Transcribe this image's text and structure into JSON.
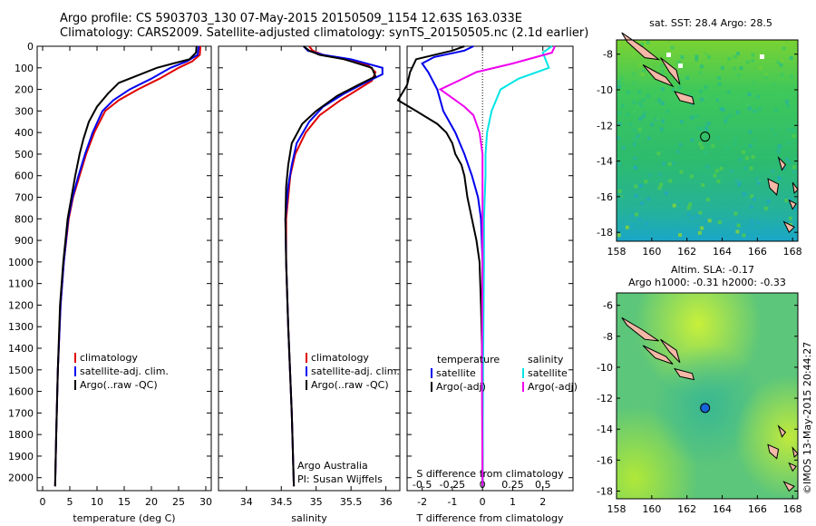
{
  "header": {
    "line1": "Argo profile: CS 5903703_130 07-May-2015 20150509_1154 12.63S 163.033E",
    "line2": "Climatology: CARS2009. Satellite-adjusted climatology: synTS_20150505.nc (2.1d earlier)"
  },
  "side_text": "©IMOS 13-May-2015 20:44:27",
  "colors": {
    "climatology": "#e00000",
    "satellite": "#0000ee",
    "argo": "#000000",
    "sal_satellite": "#00e5e5",
    "sal_argo": "#ee00ee"
  },
  "chart_data": [
    {
      "type": "line",
      "xlabel": "temperature (deg C)",
      "xlim": [
        -1,
        31
      ],
      "ylim": [
        2060,
        0
      ],
      "xticks": [
        0,
        5,
        10,
        15,
        20,
        25,
        30
      ],
      "yticks": [
        0,
        100,
        200,
        300,
        400,
        500,
        600,
        700,
        800,
        900,
        1000,
        1100,
        1200,
        1300,
        1400,
        1500,
        1600,
        1700,
        1800,
        1900,
        2000
      ],
      "legend": [
        "climatology",
        "satellite-adj. clim.",
        "Argo(..raw -QC)"
      ],
      "series": [
        {
          "name": "climatology",
          "points": [
            [
              29,
              0
            ],
            [
              28.9,
              40
            ],
            [
              27.5,
              70
            ],
            [
              25,
              100
            ],
            [
              21.5,
              150
            ],
            [
              17.5,
              200
            ],
            [
              14,
              250
            ],
            [
              11.5,
              300
            ],
            [
              9.5,
              400
            ],
            [
              8,
              500
            ],
            [
              6.8,
              600
            ],
            [
              5.6,
              700
            ],
            [
              4.8,
              800
            ],
            [
              3.9,
              1000
            ],
            [
              3.3,
              1200
            ],
            [
              2.8,
              1500
            ],
            [
              2.5,
              1800
            ],
            [
              2.3,
              2040
            ]
          ]
        },
        {
          "name": "satellite-adj. clim.",
          "points": [
            [
              28.7,
              0
            ],
            [
              28.5,
              40
            ],
            [
              26.5,
              70
            ],
            [
              23.5,
              100
            ],
            [
              20,
              150
            ],
            [
              16,
              200
            ],
            [
              13,
              250
            ],
            [
              11,
              300
            ],
            [
              9.2,
              400
            ],
            [
              7.8,
              500
            ],
            [
              6.6,
              600
            ],
            [
              5.5,
              700
            ],
            [
              4.7,
              800
            ],
            [
              3.9,
              1000
            ],
            [
              3.3,
              1200
            ],
            [
              2.8,
              1500
            ],
            [
              2.5,
              1800
            ],
            [
              2.3,
              2040
            ]
          ]
        },
        {
          "name": "Argo(..raw -QC)",
          "points": [
            [
              28.3,
              0
            ],
            [
              28.2,
              30
            ],
            [
              27,
              60
            ],
            [
              24,
              80
            ],
            [
              21,
              100
            ],
            [
              18,
              130
            ],
            [
              14,
              170
            ],
            [
              12,
              220
            ],
            [
              10,
              280
            ],
            [
              8.5,
              350
            ],
            [
              7.5,
              430
            ],
            [
              6.8,
              500
            ],
            [
              6,
              600
            ],
            [
              5.3,
              700
            ],
            [
              4.6,
              800
            ],
            [
              3.8,
              1000
            ],
            [
              3.2,
              1200
            ],
            [
              2.8,
              1500
            ],
            [
              2.5,
              1800
            ],
            [
              2.3,
              2040
            ]
          ]
        }
      ]
    },
    {
      "type": "line",
      "xlabel": "salinity",
      "xlim": [
        33.6,
        36.2
      ],
      "ylim": [
        2060,
        0
      ],
      "xticks": [
        34,
        34.5,
        35,
        35.5,
        36
      ],
      "legend": [
        "climatology",
        "satellite-adj. clim.",
        "Argo(..raw -QC)"
      ],
      "annotation": [
        "Argo Australia",
        "PI: Susan Wijffels"
      ],
      "series": [
        {
          "name": "climatology",
          "points": [
            [
              34.9,
              0
            ],
            [
              34.95,
              20
            ],
            [
              35.1,
              40
            ],
            [
              35.4,
              60
            ],
            [
              35.75,
              90
            ],
            [
              35.85,
              120
            ],
            [
              35.8,
              160
            ],
            [
              35.6,
              200
            ],
            [
              35.35,
              250
            ],
            [
              35.05,
              320
            ],
            [
              34.85,
              400
            ],
            [
              34.7,
              500
            ],
            [
              34.63,
              600
            ],
            [
              34.57,
              800
            ],
            [
              34.57,
              1000
            ],
            [
              34.6,
              1300
            ],
            [
              34.65,
              1700
            ],
            [
              34.68,
              2040
            ]
          ]
        },
        {
          "name": "satellite-adj. clim.",
          "points": [
            [
              34.82,
              0
            ],
            [
              34.88,
              20
            ],
            [
              35.1,
              40
            ],
            [
              35.5,
              60
            ],
            [
              35.95,
              100
            ],
            [
              35.95,
              130
            ],
            [
              35.7,
              170
            ],
            [
              35.4,
              220
            ],
            [
              35.1,
              280
            ],
            [
              34.9,
              350
            ],
            [
              34.72,
              450
            ],
            [
              34.65,
              550
            ],
            [
              34.6,
              650
            ],
            [
              34.56,
              800
            ],
            [
              34.57,
              1000
            ],
            [
              34.6,
              1300
            ],
            [
              34.65,
              1700
            ],
            [
              34.68,
              2040
            ]
          ]
        },
        {
          "name": "Argo(..raw -QC)",
          "points": [
            [
              34.82,
              0
            ],
            [
              34.9,
              20
            ],
            [
              35.05,
              40
            ],
            [
              35.4,
              60
            ],
            [
              35.8,
              100
            ],
            [
              35.85,
              140
            ],
            [
              35.6,
              180
            ],
            [
              35.3,
              230
            ],
            [
              35.0,
              300
            ],
            [
              34.8,
              360
            ],
            [
              34.65,
              450
            ],
            [
              34.6,
              550
            ],
            [
              34.57,
              650
            ],
            [
              34.56,
              800
            ],
            [
              34.57,
              1000
            ],
            [
              34.6,
              1300
            ],
            [
              34.65,
              1700
            ],
            [
              34.68,
              2040
            ]
          ]
        }
      ]
    },
    {
      "type": "line",
      "xlabel": "T difference from climatology",
      "xlabel_top": "S difference from climatology",
      "xlim": [
        -2.5,
        3
      ],
      "ylim": [
        2060,
        0
      ],
      "xticks": [
        -2,
        -1,
        0,
        1,
        2
      ],
      "xticks_top": [
        "-0.5",
        "-0.25",
        "0",
        "0.25",
        "0.5"
      ],
      "legend_titles": [
        "temperature",
        "salinity"
      ],
      "legend": [
        "satellite",
        "Argo(-adj)",
        "satellite",
        "Argo(-adj)"
      ],
      "series": [
        {
          "name": "satellite",
          "group": "temperature",
          "points": [
            [
              -0.3,
              0
            ],
            [
              -0.6,
              20
            ],
            [
              -1.6,
              50
            ],
            [
              -2.0,
              80
            ],
            [
              -1.8,
              120
            ],
            [
              -1.5,
              200
            ],
            [
              -1.3,
              300
            ],
            [
              -0.9,
              400
            ],
            [
              -0.6,
              500
            ],
            [
              -0.35,
              600
            ],
            [
              -0.15,
              700
            ],
            [
              -0.05,
              800
            ],
            [
              0,
              1000
            ],
            [
              0,
              2040
            ]
          ]
        },
        {
          "name": "Argo(-adj)",
          "group": "temperature",
          "points": [
            [
              -0.6,
              0
            ],
            [
              -1.0,
              20
            ],
            [
              -2.2,
              60
            ],
            [
              -2.4,
              120
            ],
            [
              -2.5,
              180
            ],
            [
              -2.8,
              250
            ],
            [
              -2.2,
              300
            ],
            [
              -1.5,
              360
            ],
            [
              -1.2,
              400
            ],
            [
              -1.0,
              450
            ],
            [
              -0.9,
              500
            ],
            [
              -0.7,
              550
            ],
            [
              -0.6,
              600
            ],
            [
              -0.5,
              700
            ],
            [
              -0.35,
              800
            ],
            [
              -0.2,
              900
            ],
            [
              -0.1,
              1000
            ],
            [
              -0.05,
              1200
            ],
            [
              0,
              1500
            ],
            [
              0,
              2040
            ]
          ]
        },
        {
          "name": "satellite",
          "group": "salinity",
          "points": [
            [
              2.3,
              0
            ],
            [
              2.0,
              30
            ],
            [
              2.2,
              100
            ],
            [
              1.2,
              150
            ],
            [
              0.6,
              200
            ],
            [
              0.3,
              300
            ],
            [
              0.15,
              400
            ],
            [
              0.1,
              500
            ],
            [
              0.1,
              600
            ],
            [
              0.05,
              800
            ],
            [
              0.05,
              1000
            ],
            [
              0.02,
              1500
            ],
            [
              0,
              2040
            ]
          ]
        },
        {
          "name": "Argo(-adj)",
          "group": "salinity",
          "points": [
            [
              2.4,
              0
            ],
            [
              2.3,
              30
            ],
            [
              1.0,
              80
            ],
            [
              -0.2,
              120
            ],
            [
              -0.8,
              160
            ],
            [
              -1.4,
              200
            ],
            [
              -1.0,
              240
            ],
            [
              -0.6,
              280
            ],
            [
              -0.3,
              320
            ],
            [
              -0.1,
              400
            ],
            [
              0,
              500
            ],
            [
              0,
              1000
            ],
            [
              -0.02,
              1500
            ],
            [
              0,
              2040
            ]
          ]
        }
      ]
    },
    {
      "type": "heatmap",
      "title": "sat. SST: 28.4 Argo: 28.5",
      "xlim": [
        158,
        168.3
      ],
      "ylim": [
        -18.5,
        -7.2
      ],
      "xticks": [
        158,
        160,
        162,
        164,
        166,
        168
      ],
      "yticks": [
        -8,
        -10,
        -12,
        -14,
        -16,
        -18
      ],
      "marker": [
        163.03,
        -12.63
      ]
    },
    {
      "type": "heatmap",
      "title": "Altim. SLA: -0.17",
      "subtitle": "Argo h1000: -0.31 h2000: -0.33",
      "xlim": [
        158,
        168.3
      ],
      "ylim": [
        -18.5,
        -5.2
      ],
      "xticks": [
        158,
        160,
        162,
        164,
        166,
        168
      ],
      "yticks": [
        -6,
        -8,
        -10,
        -12,
        -14,
        -16,
        -18
      ],
      "marker": [
        163.03,
        -12.63
      ]
    }
  ]
}
